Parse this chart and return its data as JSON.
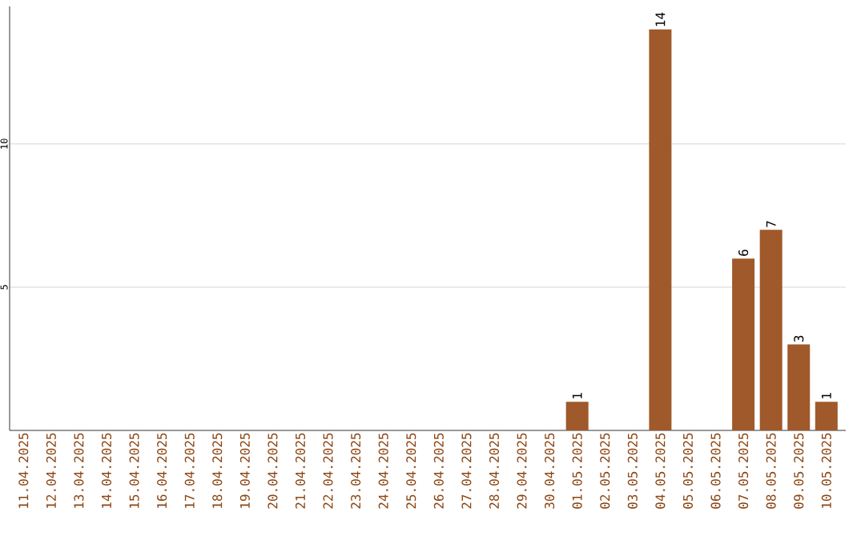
{
  "chart_data": {
    "type": "bar",
    "categories": [
      "11.04.2025",
      "12.04.2025",
      "13.04.2025",
      "14.04.2025",
      "15.04.2025",
      "16.04.2025",
      "17.04.2025",
      "18.04.2025",
      "19.04.2025",
      "20.04.2025",
      "21.04.2025",
      "22.04.2025",
      "23.04.2025",
      "24.04.2025",
      "25.04.2025",
      "26.04.2025",
      "27.04.2025",
      "28.04.2025",
      "29.04.2025",
      "30.04.2025",
      "01.05.2025",
      "02.05.2025",
      "03.05.2025",
      "04.05.2025",
      "05.05.2025",
      "06.05.2025",
      "07.05.2025",
      "08.05.2025",
      "09.05.2025",
      "10.05.2025"
    ],
    "values": [
      0,
      0,
      0,
      0,
      0,
      0,
      0,
      0,
      0,
      0,
      0,
      0,
      0,
      0,
      0,
      0,
      0,
      0,
      0,
      0,
      1,
      0,
      0,
      14,
      0,
      0,
      6,
      7,
      3,
      1
    ],
    "value_labels": [
      null,
      null,
      null,
      null,
      null,
      null,
      null,
      null,
      null,
      null,
      null,
      null,
      null,
      null,
      null,
      null,
      null,
      null,
      null,
      null,
      "1",
      null,
      null,
      "14",
      null,
      null,
      "6",
      "7",
      "3",
      "1"
    ],
    "color": "#a0592a",
    "ylim": [
      0,
      14.8
    ],
    "yticks": [
      5,
      10
    ],
    "grid": "y"
  }
}
